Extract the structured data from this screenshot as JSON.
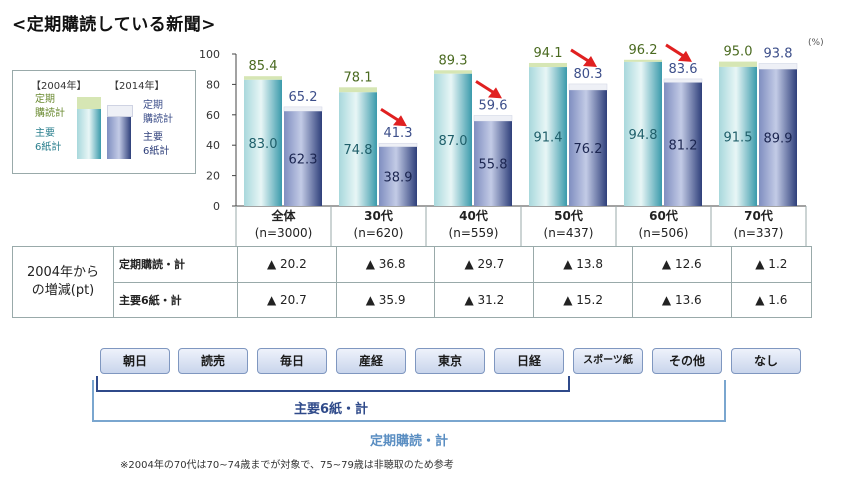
{
  "title": "<定期購読している新聞>",
  "unit": "(%)",
  "legend": {
    "year_2004": "【2004年】",
    "year_2014": "【2014年】",
    "teiki_2004": [
      "定期",
      "購読計"
    ],
    "shuyo_2004": [
      "主要",
      "6紙計"
    ],
    "teiki_2014": [
      "定期",
      "購読計"
    ],
    "shuyo_2014": [
      "主要",
      "6紙計"
    ]
  },
  "chart_data": {
    "type": "bar",
    "ylim": [
      0,
      100
    ],
    "yticks": [
      0,
      20,
      40,
      60,
      80,
      100
    ],
    "categories": [
      "全体",
      "30代",
      "40代",
      "50代",
      "60代",
      "70代"
    ],
    "category_sub": [
      "(n=3000)",
      "(n=620)",
      "(n=559)",
      "(n=437)",
      "(n=506)",
      "(n=337)"
    ],
    "series": [
      {
        "name": "2004 定期購読計",
        "values": [
          85.4,
          78.1,
          89.3,
          94.1,
          96.2,
          95.0
        ]
      },
      {
        "name": "2004 主要6紙計",
        "values": [
          83.0,
          74.8,
          87.0,
          91.4,
          94.8,
          91.5
        ]
      },
      {
        "name": "2014 定期購読計",
        "values": [
          65.2,
          41.3,
          59.6,
          80.3,
          83.6,
          93.8
        ]
      },
      {
        "name": "2014 主要6紙計",
        "values": [
          62.3,
          38.9,
          55.8,
          76.2,
          81.2,
          89.9
        ]
      }
    ],
    "colors": {
      "top_2004": "#d6e6b4",
      "main_2004": "#4fb0be",
      "top_2014": "#eef0f6",
      "main_2014": "#3d4f8a",
      "arrow": "#e02020",
      "top_label": "#4a6a20"
    },
    "decline_arrows": [
      "30代",
      "40代",
      "50代",
      "60代"
    ]
  },
  "table": {
    "group_label": [
      "2004年から",
      "の増減(pt)"
    ],
    "rows": [
      {
        "label": "定期購読・計",
        "values": [
          "▲ 20.2",
          "▲ 36.8",
          "▲ 29.7",
          "▲ 13.8",
          "▲ 12.6",
          "▲ 1.2"
        ]
      },
      {
        "label": "主要6紙・計",
        "values": [
          "▲ 20.7",
          "▲ 35.9",
          "▲ 31.2",
          "▲ 15.2",
          "▲ 13.6",
          "▲ 1.6"
        ]
      }
    ]
  },
  "papers": [
    "朝日",
    "読売",
    "毎日",
    "産経",
    "東京",
    "日経",
    "スポーツ紙",
    "その他",
    "なし"
  ],
  "brackets": {
    "shuyo": "主要6紙・計",
    "teiki": "定期購読・計"
  },
  "note": "※2004年の70代は70~74歳までが対象で、75~79歳は非聴取のため参考"
}
